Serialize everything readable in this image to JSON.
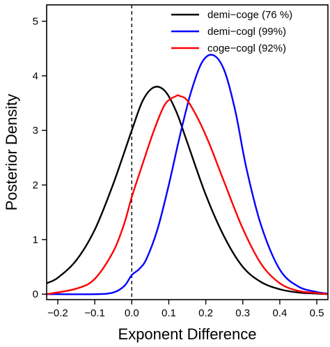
{
  "chart_data": {
    "type": "line",
    "title": "",
    "xlabel": "Exponent Difference",
    "ylabel": "Posterior Density",
    "xlim": [
      -0.23,
      0.53
    ],
    "ylim": [
      -0.1,
      5.3
    ],
    "xticks": [
      -0.2,
      -0.1,
      0.0,
      0.1,
      0.2,
      0.3,
      0.4,
      0.5
    ],
    "xtick_labels": [
      "−0.2",
      "−0.1",
      "0.0",
      "0.1",
      "0.2",
      "0.3",
      "0.4",
      "0.5"
    ],
    "yticks": [
      0,
      1,
      2,
      3,
      4,
      5
    ],
    "ytick_labels": [
      "0",
      "1",
      "2",
      "3",
      "4",
      "5"
    ],
    "grid": false,
    "legend_position": "top-right",
    "reference_line": {
      "x": 0.0,
      "style": "dashed",
      "color": "#000000"
    },
    "series": [
      {
        "name": "demi−coge (76 %)",
        "color": "#000000",
        "x": [
          -0.23,
          -0.2,
          -0.15,
          -0.1,
          -0.05,
          0.0,
          0.03,
          0.06,
          0.09,
          0.12,
          0.15,
          0.2,
          0.25,
          0.3,
          0.35,
          0.4,
          0.45,
          0.5,
          0.53
        ],
        "y": [
          0.2,
          0.3,
          0.62,
          1.18,
          2.02,
          3.0,
          3.55,
          3.79,
          3.72,
          3.35,
          2.78,
          1.82,
          1.05,
          0.5,
          0.22,
          0.09,
          0.03,
          0.01,
          0.0
        ]
      },
      {
        "name": "demi−cogl (99%)",
        "color": "#0000ff",
        "x": [
          -0.23,
          -0.1,
          -0.05,
          -0.02,
          0.0,
          0.02,
          0.04,
          0.07,
          0.1,
          0.13,
          0.16,
          0.19,
          0.22,
          0.25,
          0.28,
          0.31,
          0.35,
          0.4,
          0.45,
          0.5,
          0.53
        ],
        "y": [
          0.0,
          0.0,
          0.03,
          0.15,
          0.35,
          0.46,
          0.65,
          1.2,
          2.0,
          2.9,
          3.7,
          4.25,
          4.38,
          4.1,
          3.35,
          2.3,
          1.25,
          0.45,
          0.14,
          0.04,
          0.01
        ]
      },
      {
        "name": "coge−cogl (92%)",
        "color": "#ff0000",
        "x": [
          -0.23,
          -0.15,
          -0.1,
          -0.05,
          -0.02,
          0.0,
          0.03,
          0.06,
          0.09,
          0.12,
          0.13,
          0.15,
          0.18,
          0.21,
          0.25,
          0.3,
          0.35,
          0.4,
          0.45,
          0.5,
          0.53
        ],
        "y": [
          0.0,
          0.1,
          0.28,
          0.78,
          1.3,
          1.78,
          2.4,
          3.0,
          3.48,
          3.63,
          3.63,
          3.55,
          3.2,
          2.75,
          2.05,
          1.2,
          0.55,
          0.2,
          0.06,
          0.02,
          0.0
        ]
      }
    ]
  }
}
